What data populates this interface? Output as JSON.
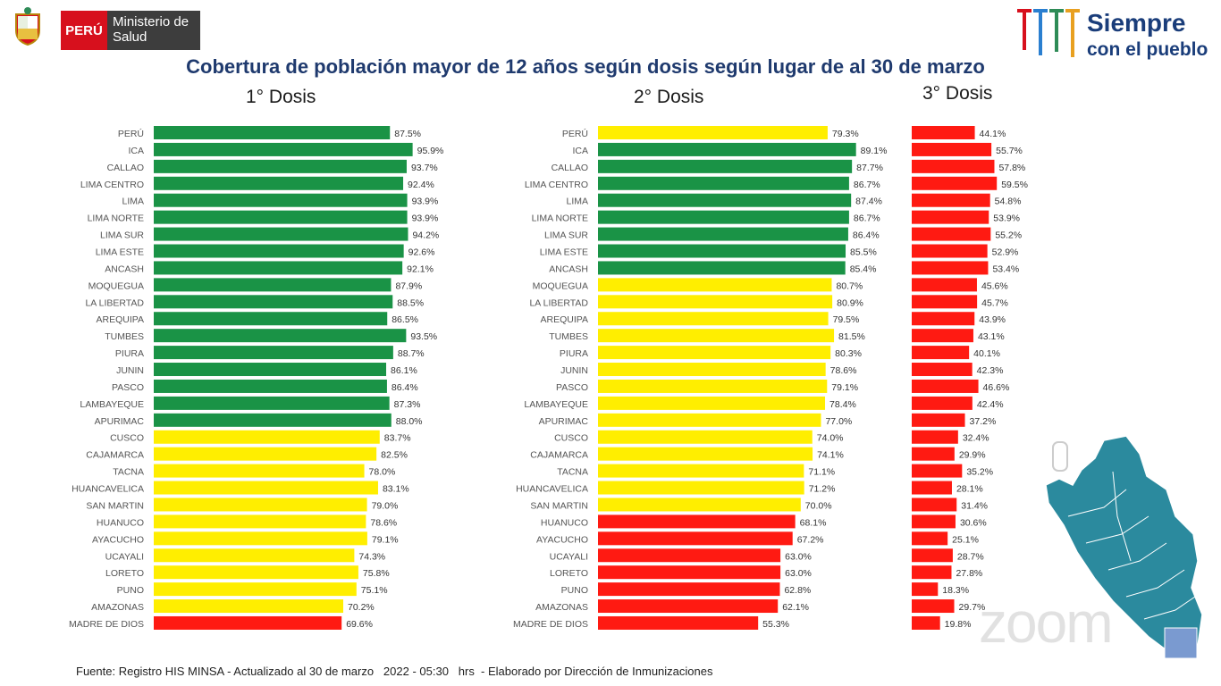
{
  "header": {
    "country": "PERÚ",
    "ministry": "Ministerio de Salud",
    "slogan_line1": "Siempre",
    "slogan_line2": "con el pueblo"
  },
  "footer": {
    "source": "Fuente: Registro HIS MINSA - Actualizado al 30 de marzo   2022 - 05:30   hrs  - Elaborado por Dirección de Inmunizaciones"
  },
  "watermark": "zoom",
  "colors": {
    "green": "#1a9346",
    "yellow": "#ffee00",
    "red": "#ff1a12"
  },
  "chart_data": [
    {
      "type": "bar",
      "title": "Cobertura de población mayor de 12 años según dosis según lugar de  al 30 de marzo",
      "subtitle": "1° Dosis",
      "orientation": "horizontal",
      "unit": "%",
      "categories": [
        "PERÚ",
        "ICA",
        "CALLAO",
        "LIMA CENTRO",
        "LIMA",
        "LIMA NORTE",
        "LIMA SUR",
        "LIMA ESTE",
        "ANCASH",
        "MOQUEGUA",
        "LA LIBERTAD",
        "AREQUIPA",
        "TUMBES",
        "PIURA",
        "JUNIN",
        "PASCO",
        "LAMBAYEQUE",
        "APURIMAC",
        "CUSCO",
        "CAJAMARCA",
        "TACNA",
        "HUANCAVELICA",
        "SAN MARTIN",
        "HUANUCO",
        "AYACUCHO",
        "UCAYALI",
        "LORETO",
        "PUNO",
        "AMAZONAS",
        "MADRE DE DIOS"
      ],
      "values": [
        87.5,
        95.9,
        93.7,
        92.4,
        93.9,
        93.9,
        94.2,
        92.6,
        92.1,
        87.9,
        88.5,
        86.5,
        93.5,
        88.7,
        86.1,
        86.4,
        87.3,
        88.0,
        83.7,
        82.5,
        78.0,
        83.1,
        79.0,
        78.6,
        79.1,
        74.3,
        75.8,
        75.1,
        70.2,
        69.6
      ],
      "labels": [
        "87.5%",
        "95.9%",
        "93.7%",
        "92.4%",
        "93.9%",
        "93.9%",
        "94.2%",
        "92.6%",
        "92.1%",
        "87.9%",
        "88.5%",
        "86.5%",
        "93.5%",
        "88.7%",
        "86.1%",
        "86.4%",
        "87.3%",
        "88.0%",
        "83.7%",
        "82.5%",
        "78.0%",
        "83.1%",
        "79.0%",
        "78.6%",
        "79.1%",
        "74.3%",
        "75.8%",
        "75.1%",
        "70.2%",
        "69.6%"
      ],
      "colors": [
        "green",
        "green",
        "green",
        "green",
        "green",
        "green",
        "green",
        "green",
        "green",
        "green",
        "green",
        "green",
        "green",
        "green",
        "green",
        "green",
        "green",
        "green",
        "yellow",
        "yellow",
        "yellow",
        "yellow",
        "yellow",
        "yellow",
        "yellow",
        "yellow",
        "yellow",
        "yellow",
        "yellow",
        "red"
      ],
      "xlim": [
        0,
        100
      ]
    },
    {
      "type": "bar",
      "subtitle": "2° Dosis",
      "orientation": "horizontal",
      "unit": "%",
      "categories": [
        "PERÚ",
        "ICA",
        "CALLAO",
        "LIMA CENTRO",
        "LIMA",
        "LIMA NORTE",
        "LIMA SUR",
        "LIMA ESTE",
        "ANCASH",
        "MOQUEGUA",
        "LA LIBERTAD",
        "AREQUIPA",
        "TUMBES",
        "PIURA",
        "JUNIN",
        "PASCO",
        "LAMBAYEQUE",
        "APURIMAC",
        "CUSCO",
        "CAJAMARCA",
        "TACNA",
        "HUANCAVELICA",
        "SAN MARTIN",
        "HUANUCO",
        "AYACUCHO",
        "UCAYALI",
        "LORETO",
        "PUNO",
        "AMAZONAS",
        "MADRE DE DIOS"
      ],
      "values": [
        79.3,
        89.1,
        87.7,
        86.7,
        87.4,
        86.7,
        86.4,
        85.5,
        85.4,
        80.7,
        80.9,
        79.5,
        81.5,
        80.3,
        78.6,
        79.1,
        78.4,
        77.0,
        74.0,
        74.1,
        71.1,
        71.2,
        70.0,
        68.1,
        67.2,
        63.0,
        63.0,
        62.8,
        62.1,
        55.3
      ],
      "labels": [
        "79.3%",
        "89.1%",
        "87.7%",
        "86.7%",
        "87.4%",
        "86.7%",
        "86.4%",
        "85.5%",
        "85.4%",
        "80.7%",
        "80.9%",
        "79.5%",
        "81.5%",
        "80.3%",
        "78.6%",
        "79.1%",
        "78.4%",
        "77.0%",
        "74.0%",
        "74.1%",
        "71.1%",
        "71.2%",
        "70.0%",
        "68.1%",
        "67.2%",
        "63.0%",
        "63.0%",
        "62.8%",
        "62.1%",
        "55.3%"
      ],
      "colors": [
        "yellow",
        "green",
        "green",
        "green",
        "green",
        "green",
        "green",
        "green",
        "green",
        "yellow",
        "yellow",
        "yellow",
        "yellow",
        "yellow",
        "yellow",
        "yellow",
        "yellow",
        "yellow",
        "yellow",
        "yellow",
        "yellow",
        "yellow",
        "yellow",
        "red",
        "red",
        "red",
        "red",
        "red",
        "red",
        "red"
      ],
      "xlim": [
        0,
        100
      ]
    },
    {
      "type": "bar",
      "subtitle": "3° Dosis",
      "orientation": "horizontal",
      "unit": "%",
      "values": [
        44.1,
        55.7,
        57.8,
        59.5,
        54.8,
        53.9,
        55.2,
        52.9,
        53.4,
        45.6,
        45.7,
        43.9,
        43.1,
        40.1,
        42.3,
        46.6,
        42.4,
        37.2,
        32.4,
        29.9,
        35.2,
        28.1,
        31.4,
        30.6,
        25.1,
        28.7,
        27.8,
        18.3,
        29.7,
        19.8
      ],
      "labels": [
        "44.1%",
        "55.7%",
        "57.8%",
        "59.5%",
        "54.8%",
        "53.9%",
        "55.2%",
        "52.9%",
        "53.4%",
        "45.6%",
        "45.7%",
        "43.9%",
        "43.1%",
        "40.1%",
        "42.3%",
        "46.6%",
        "42.4%",
        "37.2%",
        "32.4%",
        "29.9%",
        "35.2%",
        "28.1%",
        "31.4%",
        "30.6%",
        "25.1%",
        "28.7%",
        "27.8%",
        "18.3%",
        "29.7%",
        "19.8%"
      ],
      "colors": [
        "red",
        "red",
        "red",
        "red",
        "red",
        "red",
        "red",
        "red",
        "red",
        "red",
        "red",
        "red",
        "red",
        "red",
        "red",
        "red",
        "red",
        "red",
        "red",
        "red",
        "red",
        "red",
        "red",
        "red",
        "red",
        "red",
        "red",
        "red",
        "red",
        "red"
      ],
      "xlim": [
        0,
        100
      ]
    }
  ]
}
